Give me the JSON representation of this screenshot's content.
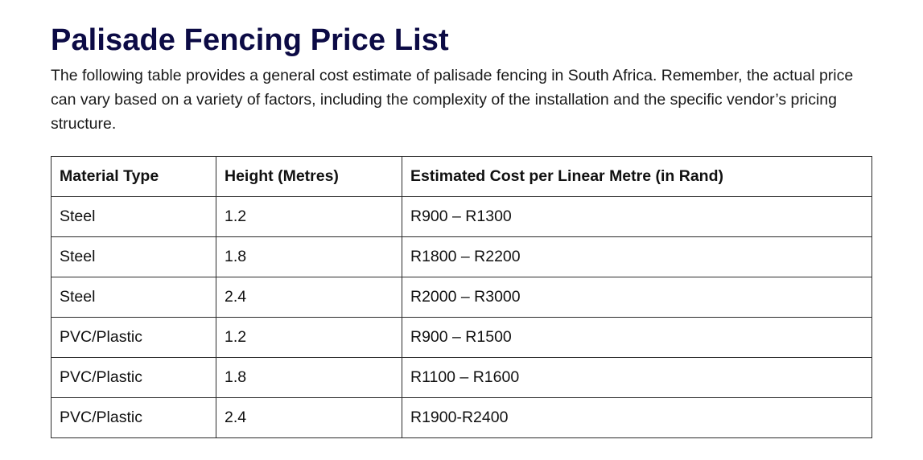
{
  "article": {
    "heading": "Palisade Fencing Price List",
    "intro": "The following table provides a general cost estimate of palisade fencing in South Africa. Remember, the actual price can vary based on a variety of factors, including the complexity of the installation and the specific vendor’s pricing structure.",
    "accent_color": "#0c0b45"
  },
  "table": {
    "headers": [
      "Material Type",
      "Height (Metres)",
      "Estimated Cost per Linear Metre (in Rand)"
    ],
    "rows": [
      [
        "Steel",
        "1.2",
        "R900 – R1300"
      ],
      [
        "Steel",
        "1.8",
        "R1800 – R2200"
      ],
      [
        "Steel",
        "2.4",
        "R2000 – R3000"
      ],
      [
        "PVC/Plastic",
        "1.2",
        "R900 – R1500"
      ],
      [
        "PVC/Plastic",
        "1.8",
        "R1100 – R1600"
      ],
      [
        "PVC/Plastic",
        "2.4",
        "R1900-R2400"
      ]
    ]
  }
}
